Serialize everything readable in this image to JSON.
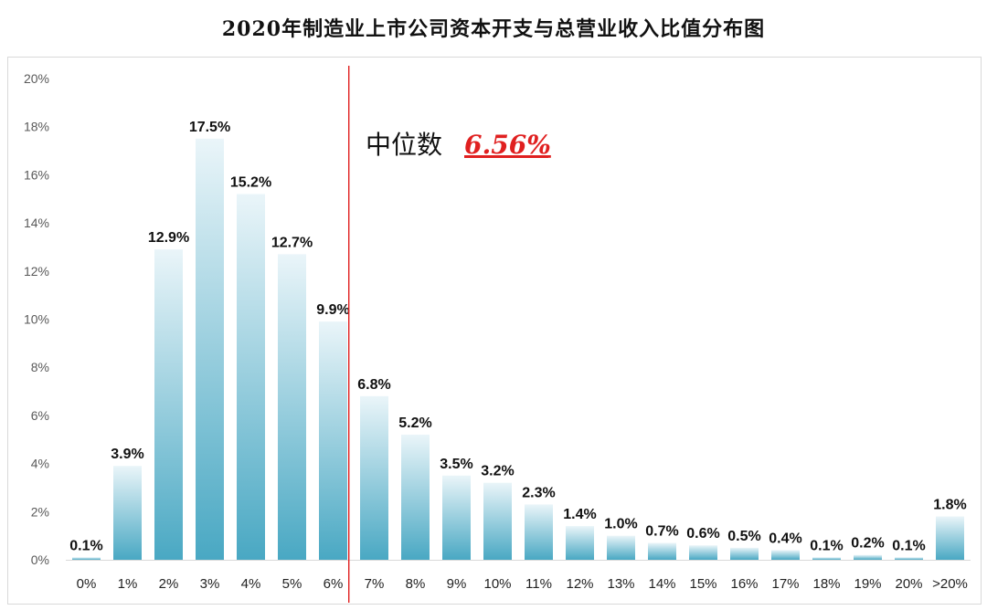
{
  "chart_data": {
    "type": "bar",
    "title": "2020年制造业上市公司资本开支与总营业收入比值分布图",
    "categories": [
      "0%",
      "1%",
      "2%",
      "3%",
      "4%",
      "5%",
      "6%",
      "7%",
      "8%",
      "9%",
      "10%",
      "11%",
      "12%",
      "13%",
      "14%",
      "15%",
      "16%",
      "17%",
      "18%",
      "19%",
      "20%",
      ">20%"
    ],
    "values": [
      0.1,
      3.9,
      12.9,
      17.5,
      15.2,
      12.7,
      9.9,
      6.8,
      5.2,
      3.5,
      3.2,
      2.3,
      1.4,
      1.0,
      0.7,
      0.6,
      0.5,
      0.4,
      0.1,
      0.2,
      0.1,
      1.8
    ],
    "data_labels": [
      "0.1%",
      "3.9%",
      "12.9%",
      "17.5%",
      "15.2%",
      "12.7%",
      "9.9%",
      "6.8%",
      "5.2%",
      "3.5%",
      "3.2%",
      "2.3%",
      "1.4%",
      "1.0%",
      "0.7%",
      "0.6%",
      "0.5%",
      "0.4%",
      "0.1%",
      "0.2%",
      "0.1%",
      "1.8%"
    ],
    "y_ticks": [
      "0%",
      "2%",
      "4%",
      "6%",
      "8%",
      "10%",
      "12%",
      "14%",
      "16%",
      "18%",
      "20%"
    ],
    "ylim": [
      0,
      20
    ],
    "grid": false,
    "median": {
      "label": "中位数",
      "value_label": "6.56%",
      "value": 6.56,
      "line_color": "#e02020"
    },
    "colors": {
      "bar_top": "#e8f4f8",
      "bar_bottom": "#4aaac4",
      "median": "#e02020"
    }
  }
}
